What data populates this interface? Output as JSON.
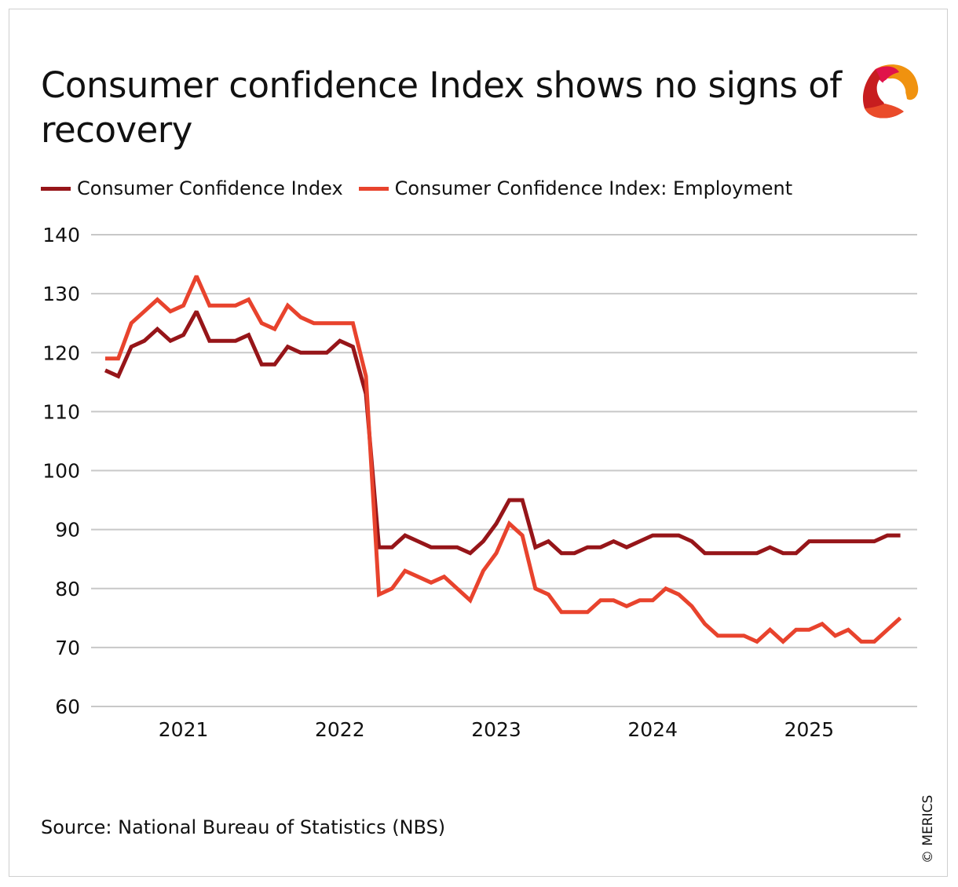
{
  "chart_data": {
    "type": "line",
    "title": "Consumer confidence Index shows no signs of recovery",
    "xlabel": "",
    "ylabel": "",
    "ylim": [
      60,
      140
    ],
    "yticks": [
      60,
      70,
      80,
      90,
      100,
      110,
      120,
      130,
      140
    ],
    "xtick_labels": [
      "2021",
      "2022",
      "2023",
      "2024",
      "2025"
    ],
    "grid": true,
    "legend_position": "top-left",
    "x_start": "2020-07",
    "x_frequency": "monthly",
    "series": [
      {
        "name": "Consumer Confidence Index",
        "color": "#961519",
        "values": [
          117,
          116,
          121,
          122,
          124,
          122,
          123,
          127,
          122,
          122,
          122,
          123,
          118,
          118,
          121,
          120,
          120,
          120,
          122,
          121,
          113,
          87,
          87,
          89,
          88,
          87,
          87,
          87,
          86,
          88,
          91,
          95,
          95,
          87,
          88,
          86,
          86,
          87,
          87,
          88,
          87,
          88,
          89,
          89,
          89,
          88,
          86,
          86,
          86,
          86,
          86,
          87,
          86,
          86,
          88,
          88,
          88,
          88,
          88,
          88,
          89,
          89
        ]
      },
      {
        "name": "Consumer Confidence Index: Employment",
        "color": "#e8432d",
        "values": [
          119,
          119,
          125,
          127,
          129,
          127,
          128,
          133,
          128,
          128,
          128,
          129,
          125,
          124,
          128,
          126,
          125,
          125,
          125,
          125,
          116,
          79,
          80,
          83,
          82,
          81,
          82,
          80,
          78,
          83,
          86,
          91,
          89,
          80,
          79,
          76,
          76,
          76,
          78,
          78,
          77,
          78,
          78,
          80,
          79,
          77,
          74,
          72,
          72,
          72,
          71,
          73,
          71,
          73,
          73,
          74,
          72,
          73,
          71,
          71,
          73,
          75
        ]
      }
    ]
  },
  "source": "Source: National Bureau of Statistics (NBS)",
  "copyright": "© MERICS",
  "logo_icon": "merics-logo"
}
